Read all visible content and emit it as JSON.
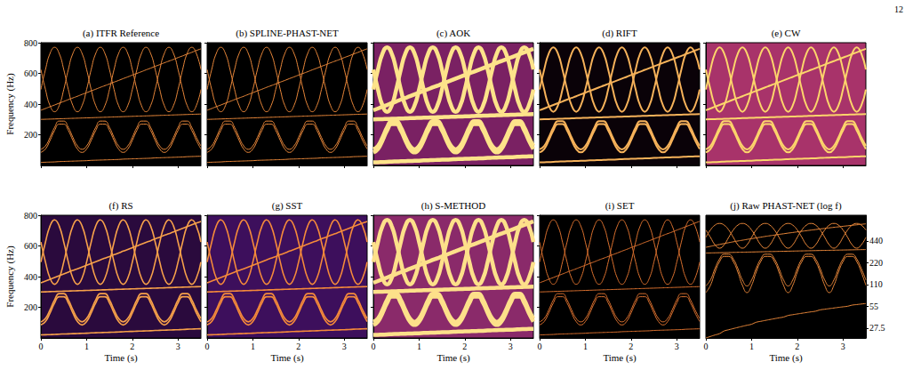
{
  "page": "12",
  "chart_data": {
    "type": "line",
    "color": "#e8873a",
    "xlim": [
      0,
      3.5
    ],
    "xticks": [
      0,
      1,
      2,
      3
    ],
    "x": [
      0,
      0.1,
      0.2,
      0.3,
      0.4,
      0.5,
      0.6,
      0.7,
      0.8,
      0.9,
      1,
      1.1,
      1.2,
      1.3,
      1.4,
      1.5,
      1.6,
      1.7,
      1.8,
      1.9,
      2,
      2.1,
      2.2,
      2.3,
      2.4,
      2.5,
      2.6,
      2.7,
      2.8,
      2.9,
      3,
      3.1,
      3.2,
      3.3,
      3.4,
      3.5
    ],
    "series": [
      {
        "values": [
          495,
          625,
          730,
          770,
          730,
          625,
          495,
          390,
          350,
          390,
          495,
          625,
          730,
          770,
          730,
          625,
          495,
          390,
          350,
          390,
          495,
          625,
          730,
          770,
          730,
          625,
          495,
          390,
          350,
          390,
          495,
          625,
          730,
          770,
          730,
          625
        ]
      },
      {
        "values": [
          625,
          495,
          390,
          350,
          390,
          495,
          625,
          730,
          770,
          730,
          625,
          495,
          390,
          350,
          390,
          495,
          625,
          730,
          770,
          730,
          625,
          495,
          390,
          350,
          390,
          495,
          625,
          730,
          770,
          730,
          625,
          495,
          390,
          350,
          390,
          495
        ]
      },
      {
        "values": [
          360,
          371,
          383,
          394,
          406,
          417,
          429,
          440,
          451,
          463,
          474,
          486,
          497,
          509,
          520,
          531,
          543,
          554,
          566,
          577,
          589,
          600,
          611,
          623,
          634,
          646,
          657,
          669,
          680,
          691,
          703,
          714,
          726,
          737,
          749,
          760
        ]
      },
      {
        "values": [
          300,
          301,
          302,
          303,
          304,
          305,
          306,
          307,
          308,
          309,
          310,
          311,
          312,
          313,
          314,
          315,
          316,
          317,
          318,
          319,
          320,
          321,
          322,
          323,
          324,
          325,
          326,
          327,
          328,
          329,
          330,
          331,
          332,
          333,
          334,
          335
        ]
      },
      {
        "values": [
          85,
          107,
          163,
          228,
          269,
          269,
          228,
          163,
          107,
          85,
          107,
          163,
          228,
          269,
          269,
          228,
          163,
          107,
          85,
          107,
          163,
          228,
          269,
          269,
          228,
          163,
          107,
          85,
          107,
          163,
          228,
          269,
          269,
          228,
          163,
          107
        ]
      },
      {
        "values": [
          105,
          127,
          183,
          248,
          289,
          289,
          248,
          183,
          127,
          105,
          127,
          183,
          248,
          289,
          289,
          248,
          183,
          127,
          105,
          127,
          183,
          248,
          289,
          289,
          248,
          183,
          127,
          105,
          127,
          183,
          248,
          289,
          289,
          248,
          183,
          127
        ]
      },
      {
        "values": [
          20,
          21,
          22,
          23,
          25,
          26,
          27,
          28,
          29,
          30,
          31,
          33,
          34,
          35,
          36,
          37,
          38,
          39,
          41,
          42,
          43,
          44,
          45,
          46,
          47,
          49,
          50,
          51,
          52,
          53,
          54,
          55,
          57,
          58,
          59,
          60
        ]
      }
    ],
    "panels": [
      {
        "title": "(a) ITFR Reference",
        "ylim": [
          0,
          800
        ],
        "yticks": [
          200,
          400,
          600,
          800
        ],
        "tick_labels": "y",
        "ylabel": "Frequency (Hz)"
      },
      {
        "title": "(b) SPLINE-PHAST-NET",
        "ylim": [
          0,
          800
        ],
        "yticks": [
          200,
          400,
          600,
          800
        ],
        "tick_labels": false
      },
      {
        "title": "(c) AOK",
        "ylim": [
          0,
          800
        ],
        "yticks": [
          200,
          400,
          600,
          800
        ],
        "tick_labels": false
      },
      {
        "title": "(d) RIFT",
        "ylim": [
          0,
          800
        ],
        "yticks": [
          200,
          400,
          600,
          800
        ],
        "tick_labels": false
      },
      {
        "title": "(e) CW",
        "ylim": [
          0,
          800
        ],
        "yticks": [
          200,
          400,
          600,
          800
        ],
        "tick_labels": false
      },
      {
        "title": "(f) RS",
        "ylim": [
          0,
          800
        ],
        "yticks": [
          200,
          400,
          600,
          800
        ],
        "xlabel": "Time (s)",
        "ylabel": "Frequency (Hz)"
      },
      {
        "title": "(g) SST",
        "ylim": [
          0,
          800
        ],
        "yticks": [
          200,
          400,
          600,
          800
        ],
        "tick_labels": "x",
        "xlabel": "Time (s)"
      },
      {
        "title": "(h) S-METHOD",
        "ylim": [
          0,
          800
        ],
        "yticks": [
          200,
          400,
          600,
          800
        ],
        "tick_labels": "x",
        "xlabel": "Time (s)"
      },
      {
        "title": "(i) SET",
        "ylim": [
          0,
          800
        ],
        "yticks": [
          200,
          400,
          600,
          800
        ],
        "tick_labels": "x",
        "xlabel": "Time (s)"
      },
      {
        "title": "(j) Raw PHAST-NET (log f)",
        "ylim": [
          20,
          1000
        ],
        "yticks": [
          27.5,
          55,
          110,
          220,
          440
        ],
        "log": "y",
        "xlabel": "Time (s)"
      }
    ]
  }
}
